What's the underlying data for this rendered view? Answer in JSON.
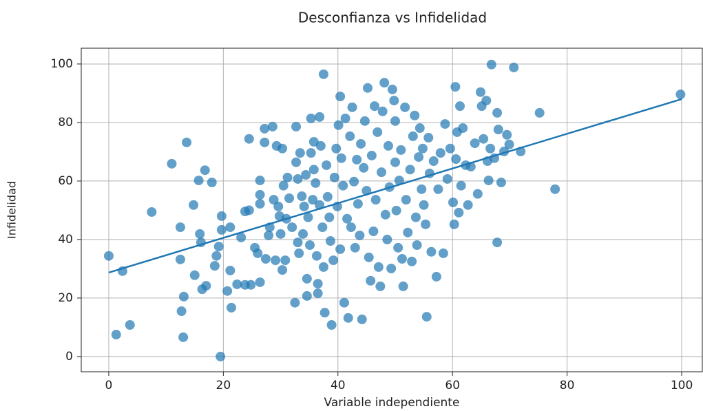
{
  "chart_data": {
    "type": "scatter",
    "title": "Desconfianza vs Infidelidad",
    "xlabel": "Variable independiente",
    "ylabel": "Infidelidad",
    "color": "#1f77b4",
    "grid": true,
    "xlim": [
      -4.8,
      103.6
    ],
    "ylim": [
      -5.2,
      105.4
    ],
    "xticks": [
      0,
      20,
      40,
      60,
      80,
      100
    ],
    "yticks": [
      0,
      20,
      40,
      60,
      80,
      100
    ],
    "x": [
      0,
      1.3,
      2.4,
      3.7,
      7.5,
      11,
      12.5,
      12.5,
      12.7,
      13,
      13.1,
      13.6,
      14.8,
      15,
      15.7,
      15.9,
      16.1,
      16.3,
      16.8,
      17,
      18,
      18.5,
      18.8,
      19.2,
      19.5,
      19.7,
      19.7,
      20.7,
      21.2,
      21.2,
      21.4,
      22.4,
      23.1,
      23.8,
      23.8,
      24.5,
      24.5,
      24.8,
      25.5,
      26,
      26.4,
      26.4,
      26.4,
      26.4,
      27.2,
      27.2,
      27.4,
      27.9,
      28.1,
      28.6,
      28.8,
      29.1,
      29.3,
      29.6,
      29.8,
      30,
      30.3,
      30.3,
      30.5,
      30.8,
      31,
      31.2,
      31.5,
      32,
      32.5,
      32.7,
      32.7,
      33,
      33,
      33.2,
      33.4,
      33.7,
      33.9,
      34.1,
      34.4,
      34.6,
      34.6,
      34.8,
      35.1,
      35.3,
      35.3,
      35.6,
      35.8,
      35.8,
      36.1,
      36.3,
      36.5,
      36.5,
      36.8,
      36.8,
      37,
      37.3,
      37.5,
      37.5,
      37.7,
      38,
      38.2,
      38.5,
      38.7,
      38.9,
      39.2,
      39.4,
      39.7,
      39.9,
      40.1,
      40.4,
      40.4,
      40.6,
      40.9,
      41.1,
      41.3,
      41.6,
      41.8,
      42.1,
      42.3,
      42.5,
      42.8,
      43,
      43.3,
      43.5,
      43.8,
      44,
      44.2,
      44.5,
      44.7,
      45,
      45.2,
      45.4,
      45.7,
      45.9,
      46.2,
      46.4,
      46.6,
      46.9,
      47.1,
      47.4,
      47.6,
      47.8,
      48.1,
      48.3,
      48.6,
      48.8,
      49,
      49.3,
      49.5,
      49.8,
      50,
      50,
      50.2,
      50.5,
      50.7,
      51,
      51.2,
      51.4,
      51.7,
      51.9,
      52.2,
      52.6,
      52.9,
      53.1,
      53.4,
      53.6,
      53.8,
      54.1,
      54.3,
      54.6,
      54.8,
      55,
      55.3,
      55.5,
      55.8,
      56,
      56.3,
      56.7,
      57.2,
      57.5,
      57.9,
      58.4,
      58.7,
      59.1,
      59.6,
      60.1,
      60.3,
      60.5,
      60.6,
      60.8,
      61.1,
      61.3,
      61.5,
      61.8,
      62.3,
      62.7,
      63.2,
      63.9,
      64.4,
      64.9,
      65.1,
      65.4,
      65.9,
      66.1,
      66.3,
      66.6,
      66.8,
      67.3,
      67.8,
      67.8,
      68,
      68.5,
      69,
      69.5,
      69.9,
      70.7,
      71.9,
      75.2,
      77.9,
      99.8
    ],
    "values": [
      34.4,
      7.5,
      29.2,
      10.8,
      49.4,
      65.9,
      44.2,
      33.2,
      15.5,
      6.6,
      20.5,
      73.2,
      51.8,
      27.8,
      60.2,
      41.9,
      39,
      23,
      63.7,
      24.2,
      59.5,
      31,
      34.4,
      37.6,
      0,
      48,
      43.3,
      22.4,
      44.2,
      29.4,
      16.7,
      24.7,
      40.7,
      49.6,
      24.5,
      74.4,
      50,
      24.5,
      37.2,
      35.3,
      60.2,
      55.3,
      52.2,
      25.4,
      77.9,
      73.2,
      33.4,
      41.4,
      44.2,
      78.6,
      53.6,
      32.9,
      72,
      51.3,
      48,
      41.9,
      71.1,
      29.6,
      58.4,
      32.9,
      47.1,
      61.2,
      54.1,
      44.2,
      18.4,
      78.6,
      66.4,
      60.7,
      39,
      35.3,
      69.6,
      54.8,
      41.9,
      51.3,
      62.1,
      26.6,
      20.7,
      47.6,
      38.1,
      81.4,
      69.6,
      53.6,
      73.4,
      63.9,
      59.3,
      34.4,
      24.9,
      21.6,
      81.9,
      51.8,
      72,
      44.2,
      96.5,
      30.6,
      15,
      65.4,
      54.6,
      47.6,
      39.5,
      10.8,
      32.9,
      61.2,
      71.1,
      51.3,
      79.1,
      88.9,
      36.7,
      67.8,
      58.4,
      18.4,
      81.4,
      47.1,
      13.2,
      75.3,
      44.2,
      85.2,
      59.8,
      37.2,
      67.3,
      52.2,
      41.4,
      72.7,
      12.7,
      64.5,
      80.5,
      56.7,
      91.8,
      33.9,
      25.9,
      68.7,
      42.8,
      85.6,
      53.6,
      76.7,
      30.6,
      24,
      63,
      83.8,
      93.6,
      48.5,
      40,
      72,
      57.9,
      30.1,
      91.3,
      87.5,
      80.5,
      66.4,
      49.9,
      37.2,
      60.2,
      70.6,
      33.4,
      24,
      85.2,
      53.6,
      42.4,
      63.9,
      32.5,
      75.3,
      82.4,
      47.6,
      38.1,
      68.2,
      78.1,
      57.2,
      71.1,
      51.8,
      45.2,
      13.6,
      74.8,
      62.6,
      35.8,
      66.8,
      27.3,
      57.2,
      69.6,
      35.3,
      79.5,
      60.7,
      71.1,
      52.7,
      45.2,
      92.2,
      67.5,
      76.7,
      49.2,
      85.6,
      58.4,
      78.1,
      65.4,
      51.8,
      64.9,
      72.9,
      55.6,
      90.4,
      85.6,
      74.4,
      87.5,
      66.8,
      60.2,
      71.1,
      99.8,
      67.8,
      83.3,
      39,
      77.6,
      59.5,
      70.1,
      75.8,
      72.5,
      98.8,
      70.1,
      83.3,
      57.2,
      89.6
    ],
    "fit": {
      "x": [
        0,
        100
      ],
      "values": [
        28.7,
        88
      ]
    }
  }
}
